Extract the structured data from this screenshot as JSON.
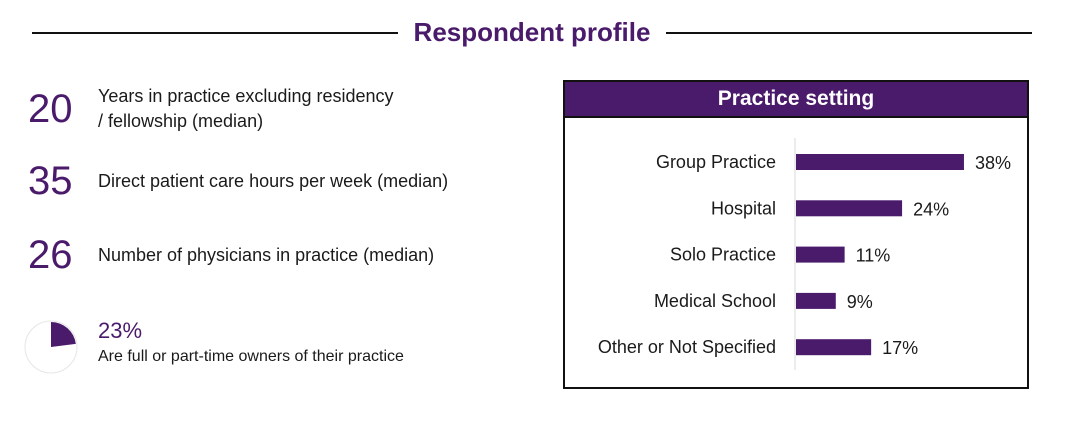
{
  "header": {
    "title": "Respondent profile"
  },
  "stats": [
    {
      "value": "20",
      "label_line1": "Years in practice excluding residency",
      "label_line2": "/ fellowship (median)"
    },
    {
      "value": "35",
      "label_line1": "Direct patient care hours per week (median)"
    },
    {
      "value": "26",
      "label_line1": "Number of physicians in practice (median)"
    }
  ],
  "ownership": {
    "value": "23%",
    "fraction": 0.23,
    "label": "Are full or part-time owners of their practice"
  },
  "colors": {
    "accent": "#4a1a6b"
  },
  "chart_data": {
    "type": "bar",
    "orientation": "horizontal",
    "title": "Practice setting",
    "categories": [
      "Group Practice",
      "Hospital",
      "Solo Practice",
      "Medical School",
      "Other or Not Specified"
    ],
    "values": [
      38,
      24,
      11,
      9,
      17
    ],
    "labels": [
      "38%",
      "24%",
      "11%",
      "9%",
      "17%"
    ],
    "unit": "%",
    "grid": false
  }
}
